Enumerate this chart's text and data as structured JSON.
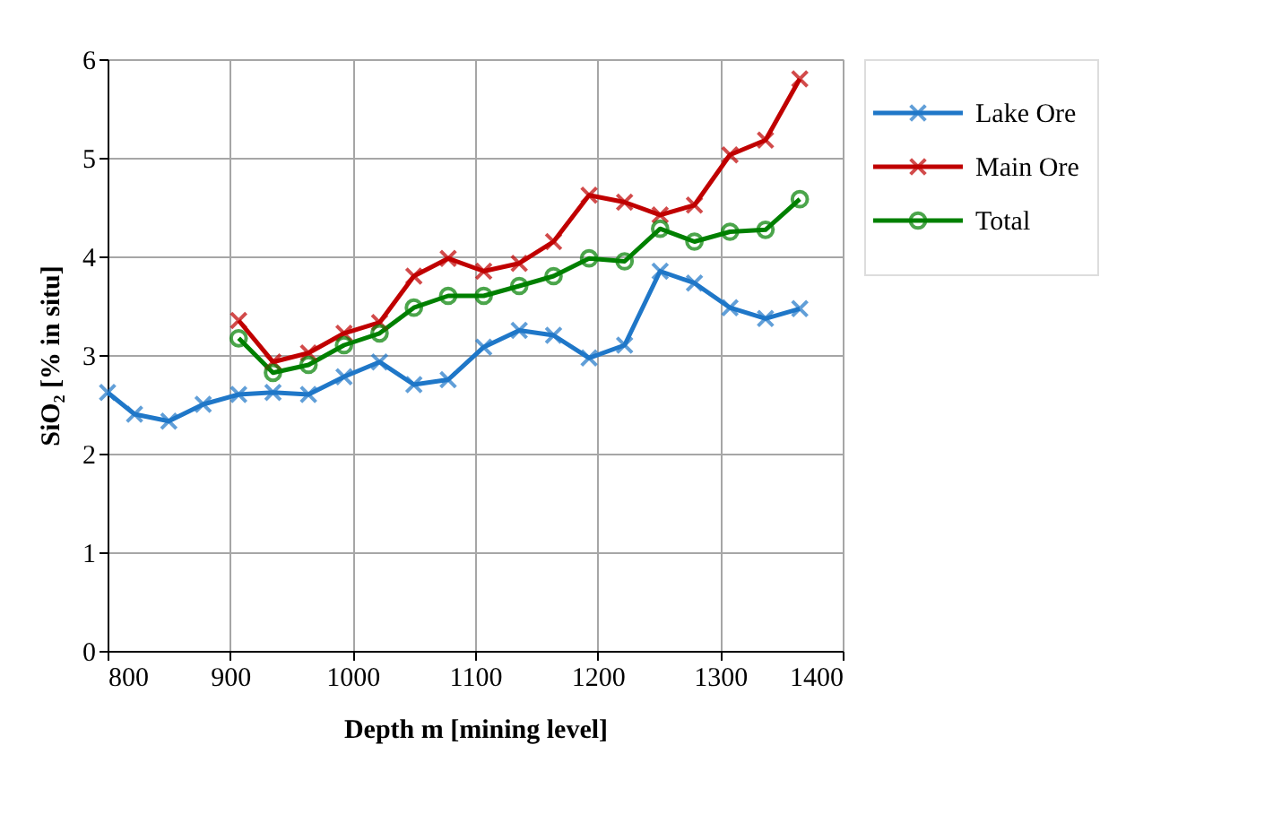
{
  "chart_data": {
    "type": "line",
    "xlabel": "Depth m [mining level]",
    "ylabel": "SiO₂ [% in situ]",
    "xlim": [
      800,
      1400
    ],
    "xticks": [
      800,
      900,
      1000,
      1100,
      1200,
      1300,
      1400
    ],
    "ylim": [
      0,
      6
    ],
    "yticks": [
      0,
      1,
      2,
      3,
      4,
      5,
      6
    ],
    "grid": true,
    "legend": "right",
    "series": [
      {
        "name": "Lake Ore",
        "color": "#1f77c8",
        "marker": "cross",
        "x": [
          800,
          822,
          850,
          878,
          907,
          935,
          964,
          993,
          1022,
          1050,
          1078,
          1107,
          1136,
          1164,
          1193,
          1222,
          1251,
          1279,
          1308,
          1337,
          1365
        ],
        "values": [
          2.62,
          2.4,
          2.33,
          2.5,
          2.6,
          2.62,
          2.6,
          2.78,
          2.93,
          2.7,
          2.75,
          3.08,
          3.25,
          3.2,
          2.97,
          3.1,
          3.85,
          3.73,
          3.48,
          3.37,
          3.47
        ]
      },
      {
        "name": "Main Ore",
        "color": "#c00000",
        "marker": "cross",
        "x": [
          907,
          935,
          964,
          993,
          1022,
          1050,
          1078,
          1107,
          1136,
          1164,
          1193,
          1222,
          1251,
          1279,
          1308,
          1337,
          1365
        ],
        "values": [
          3.35,
          2.93,
          3.02,
          3.22,
          3.33,
          3.8,
          3.98,
          3.85,
          3.93,
          4.15,
          4.62,
          4.55,
          4.42,
          4.52,
          5.03,
          5.18,
          5.8
        ]
      },
      {
        "name": "Total",
        "color": "#008000",
        "marker": "circle",
        "x": [
          907,
          935,
          964,
          993,
          1022,
          1050,
          1078,
          1107,
          1136,
          1164,
          1193,
          1222,
          1251,
          1279,
          1308,
          1337,
          1365
        ],
        "values": [
          3.17,
          2.82,
          2.9,
          3.1,
          3.22,
          3.48,
          3.6,
          3.6,
          3.7,
          3.8,
          3.98,
          3.95,
          4.28,
          4.15,
          4.25,
          4.27,
          4.58
        ]
      }
    ]
  }
}
